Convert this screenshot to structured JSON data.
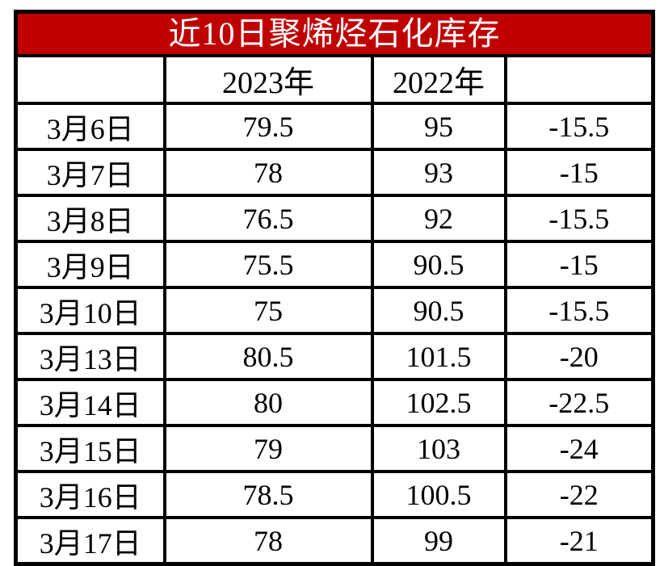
{
  "title": "近10日聚烯烃石化库存",
  "colors": {
    "title_bg": "#c00000",
    "title_text": "#ffffff",
    "border": "#000000",
    "cell_bg": "#ffffff",
    "cell_text": "#000000"
  },
  "table": {
    "headers": [
      "",
      "2023年",
      "2022年",
      ""
    ],
    "rows": [
      [
        "3月6日",
        "79.5",
        "95",
        "-15.5"
      ],
      [
        "3月7日",
        "78",
        "93",
        "-15"
      ],
      [
        "3月8日",
        "76.5",
        "92",
        "-15.5"
      ],
      [
        "3月9日",
        "75.5",
        "90.5",
        "-15"
      ],
      [
        "3月10日",
        "75",
        "90.5",
        "-15.5"
      ],
      [
        "3月13日",
        "80.5",
        "101.5",
        "-20"
      ],
      [
        "3月14日",
        "80",
        "102.5",
        "-22.5"
      ],
      [
        "3月15日",
        "79",
        "103",
        "-24"
      ],
      [
        "3月16日",
        "78.5",
        "100.5",
        "-22"
      ],
      [
        "3月17日",
        "78",
        "99",
        "-21"
      ]
    ]
  },
  "chart_data": {
    "type": "table",
    "title": "近10日聚烯烃石化库存",
    "categories": [
      "3月6日",
      "3月7日",
      "3月8日",
      "3月9日",
      "3月10日",
      "3月13日",
      "3月14日",
      "3月15日",
      "3月16日",
      "3月17日"
    ],
    "series": [
      {
        "name": "2023年",
        "values": [
          79.5,
          78,
          76.5,
          75.5,
          75,
          80.5,
          80,
          79,
          78.5,
          78
        ]
      },
      {
        "name": "2022年",
        "values": [
          95,
          93,
          92,
          90.5,
          90.5,
          101.5,
          102.5,
          103,
          100.5,
          99
        ]
      },
      {
        "name": "",
        "values": [
          -15.5,
          -15,
          -15.5,
          -15,
          -15.5,
          -20,
          -22.5,
          -24,
          -22,
          -21
        ]
      }
    ]
  }
}
